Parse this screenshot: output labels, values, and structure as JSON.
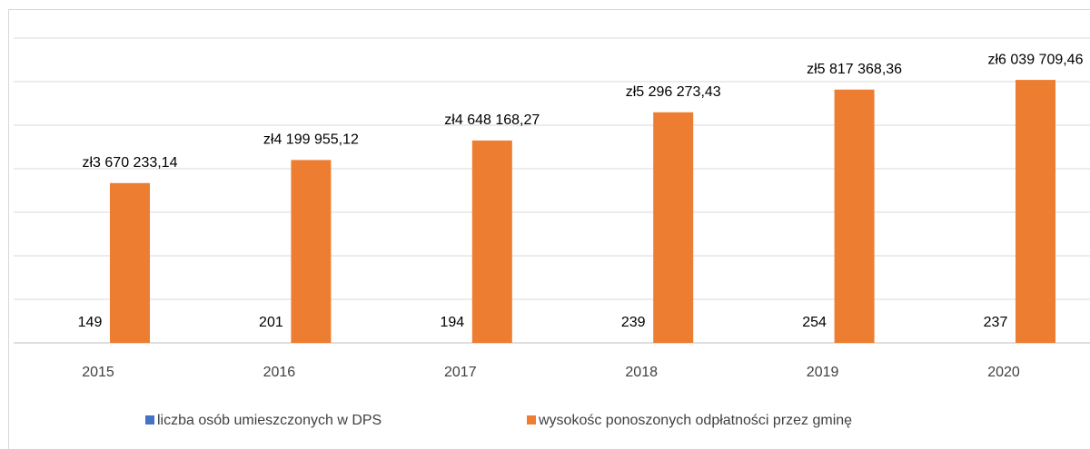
{
  "chart_data": {
    "type": "bar",
    "categories": [
      "2015",
      "2016",
      "2017",
      "2018",
      "2019",
      "2020"
    ],
    "series": [
      {
        "name": "liczba osób umieszczonych w DPS",
        "color": "#4472c4",
        "values": [
          149,
          201,
          194,
          239,
          254,
          237
        ]
      },
      {
        "name": "wysokośc ponoszonych odpłatności przez gminę",
        "color": "#ed7d31",
        "values": [
          3670233.14,
          4199955.12,
          4648168.27,
          5296273.43,
          5817368.36,
          6039709.46
        ],
        "value_labels": [
          "zł3 670 233,14",
          "zł4 199 955,12",
          "zł4 648 168,27",
          "zł5 296 273,43",
          "zł5 817 368,36",
          "zł6 039 709,46"
        ]
      }
    ],
    "ylim": [
      0,
      7000000
    ],
    "yticks": [
      0,
      1000000,
      2000000,
      3000000,
      4000000,
      5000000,
      6000000,
      7000000
    ],
    "grid": true,
    "legend": "bottom"
  }
}
